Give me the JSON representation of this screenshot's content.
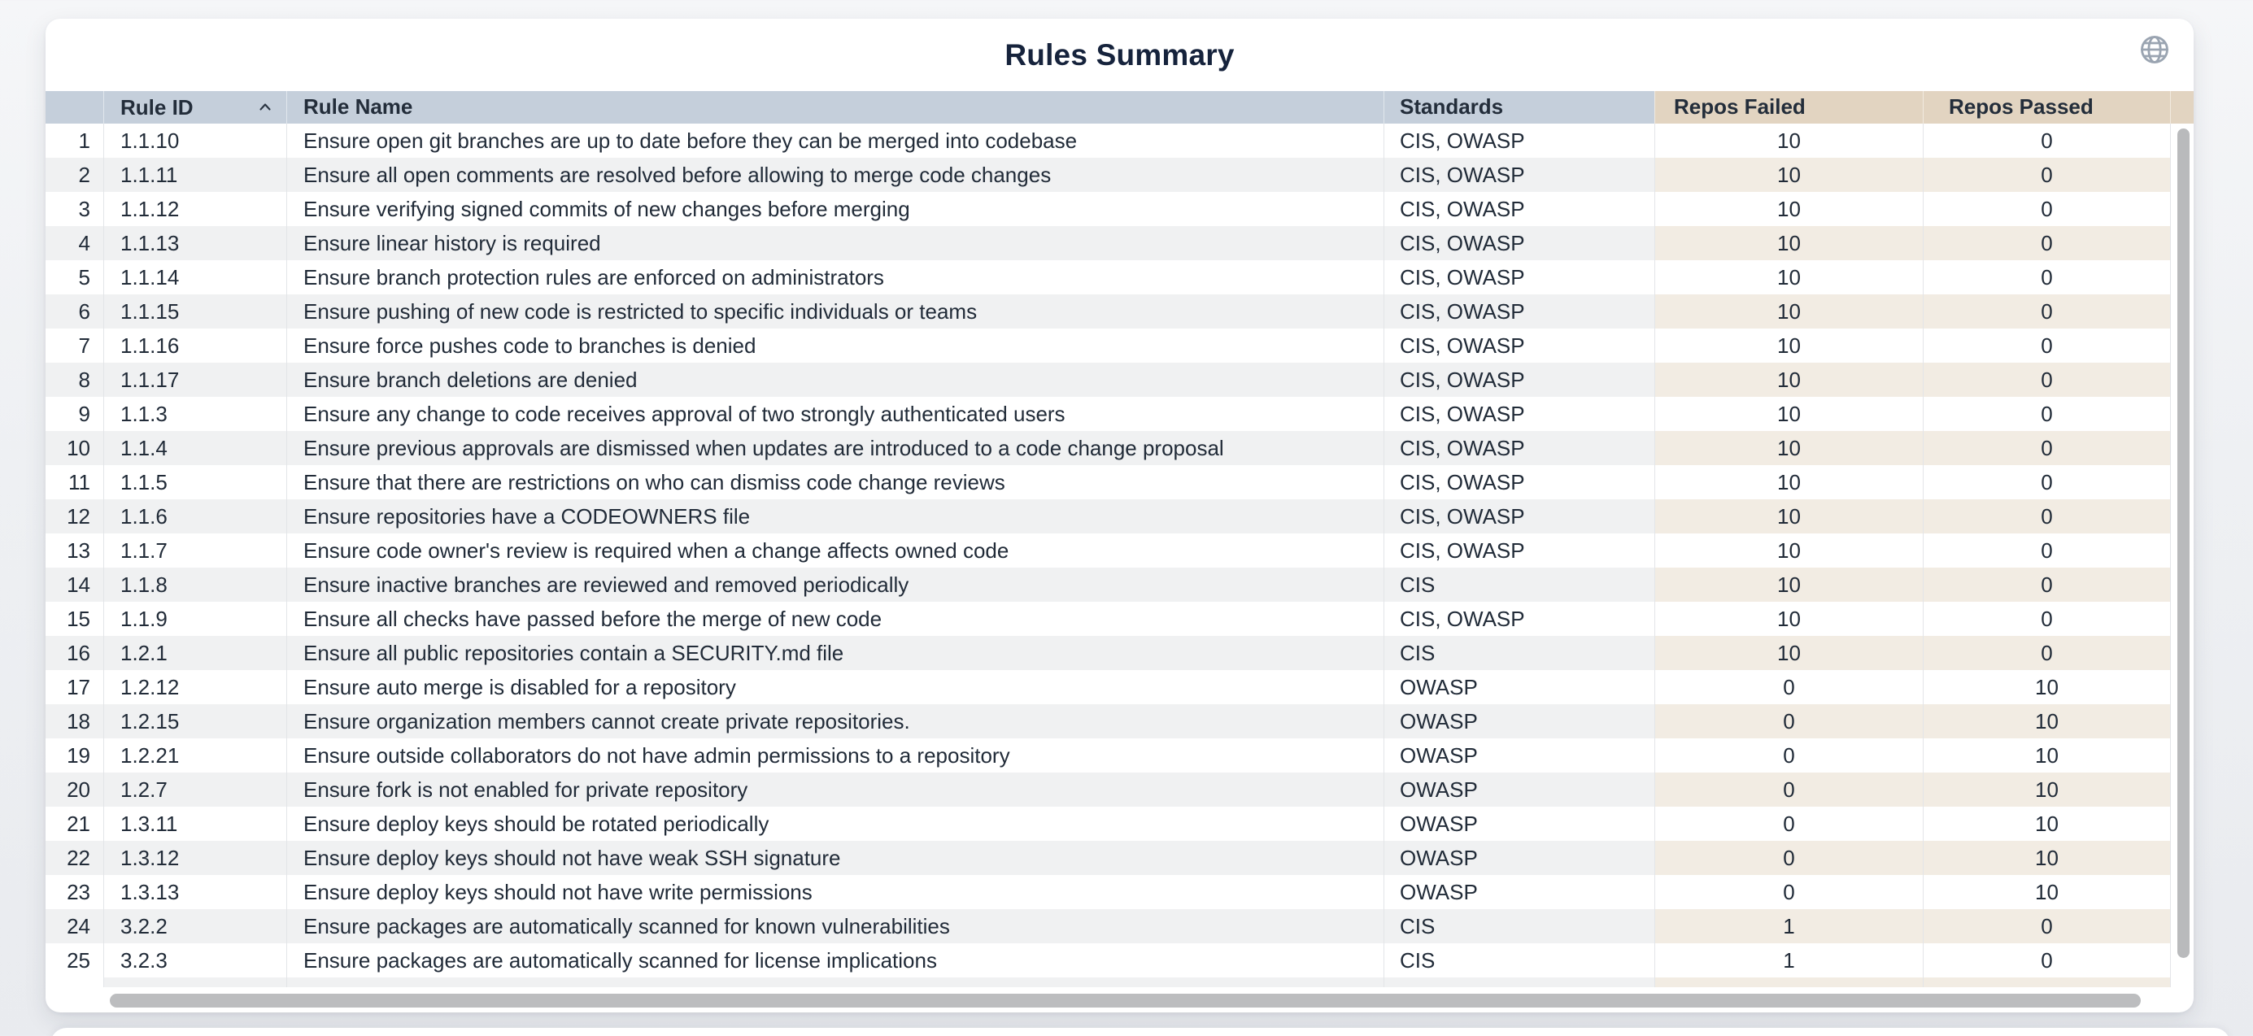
{
  "title": "Rules Summary",
  "icons": {
    "globe": "globe-icon (circle with meridians)",
    "sort_ascending": "chevron-up"
  },
  "colors": {
    "title": "#16233c",
    "header_blue": "#c5cfdb",
    "header_tan": "#e2d4c1",
    "stripe_gray": "#f0f1f2",
    "stripe_tan": "#f2ece3",
    "scrollbar_thumb": "#bcbdbf",
    "icon_gray": "#9aa4b1"
  },
  "table": {
    "columns": [
      {
        "key": "idx",
        "label": ""
      },
      {
        "key": "rule_id",
        "label": "Rule ID",
        "sorted": "asc"
      },
      {
        "key": "rule_name",
        "label": "Rule Name"
      },
      {
        "key": "standards",
        "label": "Standards"
      },
      {
        "key": "repos_failed",
        "label": "Repos Failed"
      },
      {
        "key": "repos_passed",
        "label": "Repos Passed"
      }
    ],
    "rows": [
      {
        "idx": "1",
        "rule_id": "1.1.10",
        "rule_name": "Ensure open git branches are up to date before they can be merged into codebase",
        "standards": "CIS, OWASP",
        "repos_failed": "10",
        "repos_passed": "0"
      },
      {
        "idx": "2",
        "rule_id": "1.1.11",
        "rule_name": "Ensure all open comments are resolved before allowing to merge code changes",
        "standards": "CIS, OWASP",
        "repos_failed": "10",
        "repos_passed": "0"
      },
      {
        "idx": "3",
        "rule_id": "1.1.12",
        "rule_name": "Ensure verifying signed commits of new changes before merging",
        "standards": "CIS, OWASP",
        "repos_failed": "10",
        "repos_passed": "0"
      },
      {
        "idx": "4",
        "rule_id": "1.1.13",
        "rule_name": "Ensure linear history is required",
        "standards": "CIS, OWASP",
        "repos_failed": "10",
        "repos_passed": "0"
      },
      {
        "idx": "5",
        "rule_id": "1.1.14",
        "rule_name": "Ensure branch protection rules are enforced on administrators",
        "standards": "CIS, OWASP",
        "repos_failed": "10",
        "repos_passed": "0"
      },
      {
        "idx": "6",
        "rule_id": "1.1.15",
        "rule_name": "Ensure pushing of new code is restricted to specific individuals or teams",
        "standards": "CIS, OWASP",
        "repos_failed": "10",
        "repos_passed": "0"
      },
      {
        "idx": "7",
        "rule_id": "1.1.16",
        "rule_name": "Ensure force pushes code to branches is denied",
        "standards": "CIS, OWASP",
        "repos_failed": "10",
        "repos_passed": "0"
      },
      {
        "idx": "8",
        "rule_id": "1.1.17",
        "rule_name": "Ensure branch deletions are denied",
        "standards": "CIS, OWASP",
        "repos_failed": "10",
        "repos_passed": "0"
      },
      {
        "idx": "9",
        "rule_id": "1.1.3",
        "rule_name": "Ensure any change to code receives approval of two strongly authenticated users",
        "standards": "CIS, OWASP",
        "repos_failed": "10",
        "repos_passed": "0"
      },
      {
        "idx": "10",
        "rule_id": "1.1.4",
        "rule_name": "Ensure previous approvals are dismissed when updates are introduced to a code change proposal",
        "standards": "CIS, OWASP",
        "repos_failed": "10",
        "repos_passed": "0"
      },
      {
        "idx": "11",
        "rule_id": "1.1.5",
        "rule_name": "Ensure that there are restrictions on who can dismiss code change reviews",
        "standards": "CIS, OWASP",
        "repos_failed": "10",
        "repos_passed": "0"
      },
      {
        "idx": "12",
        "rule_id": "1.1.6",
        "rule_name": "Ensure repositories have a CODEOWNERS file",
        "standards": "CIS, OWASP",
        "repos_failed": "10",
        "repos_passed": "0"
      },
      {
        "idx": "13",
        "rule_id": "1.1.7",
        "rule_name": "Ensure code owner's review is required when a change affects owned code",
        "standards": "CIS, OWASP",
        "repos_failed": "10",
        "repos_passed": "0"
      },
      {
        "idx": "14",
        "rule_id": "1.1.8",
        "rule_name": "Ensure inactive branches are reviewed and removed periodically",
        "standards": "CIS",
        "repos_failed": "10",
        "repos_passed": "0"
      },
      {
        "idx": "15",
        "rule_id": "1.1.9",
        "rule_name": "Ensure all checks have passed before the merge of new code",
        "standards": "CIS, OWASP",
        "repos_failed": "10",
        "repos_passed": "0"
      },
      {
        "idx": "16",
        "rule_id": "1.2.1",
        "rule_name": "Ensure all public repositories contain a SECURITY.md file",
        "standards": "CIS",
        "repos_failed": "10",
        "repos_passed": "0"
      },
      {
        "idx": "17",
        "rule_id": "1.2.12",
        "rule_name": "Ensure auto merge is disabled for a repository",
        "standards": "OWASP",
        "repos_failed": "0",
        "repos_passed": "10"
      },
      {
        "idx": "18",
        "rule_id": "1.2.15",
        "rule_name": "Ensure organization members cannot create private repositories.",
        "standards": "OWASP",
        "repos_failed": "0",
        "repos_passed": "10"
      },
      {
        "idx": "19",
        "rule_id": "1.2.21",
        "rule_name": "Ensure outside collaborators do not have admin permissions to a repository",
        "standards": "OWASP",
        "repos_failed": "0",
        "repos_passed": "10"
      },
      {
        "idx": "20",
        "rule_id": "1.2.7",
        "rule_name": "Ensure fork is not enabled for private repository",
        "standards": "OWASP",
        "repos_failed": "0",
        "repos_passed": "10"
      },
      {
        "idx": "21",
        "rule_id": "1.3.11",
        "rule_name": "Ensure deploy keys should be rotated periodically",
        "standards": "OWASP",
        "repos_failed": "0",
        "repos_passed": "10"
      },
      {
        "idx": "22",
        "rule_id": "1.3.12",
        "rule_name": "Ensure deploy keys should not have weak SSH signature",
        "standards": "OWASP",
        "repos_failed": "0",
        "repos_passed": "10"
      },
      {
        "idx": "23",
        "rule_id": "1.3.13",
        "rule_name": "Ensure deploy keys should not have write permissions",
        "standards": "OWASP",
        "repos_failed": "0",
        "repos_passed": "10"
      },
      {
        "idx": "24",
        "rule_id": "3.2.2",
        "rule_name": "Ensure packages are automatically scanned for known vulnerabilities",
        "standards": "CIS",
        "repos_failed": "1",
        "repos_passed": "0"
      },
      {
        "idx": "25",
        "rule_id": "3.2.3",
        "rule_name": "Ensure packages are automatically scanned for license implications",
        "standards": "CIS",
        "repos_failed": "1",
        "repos_passed": "0"
      }
    ]
  }
}
